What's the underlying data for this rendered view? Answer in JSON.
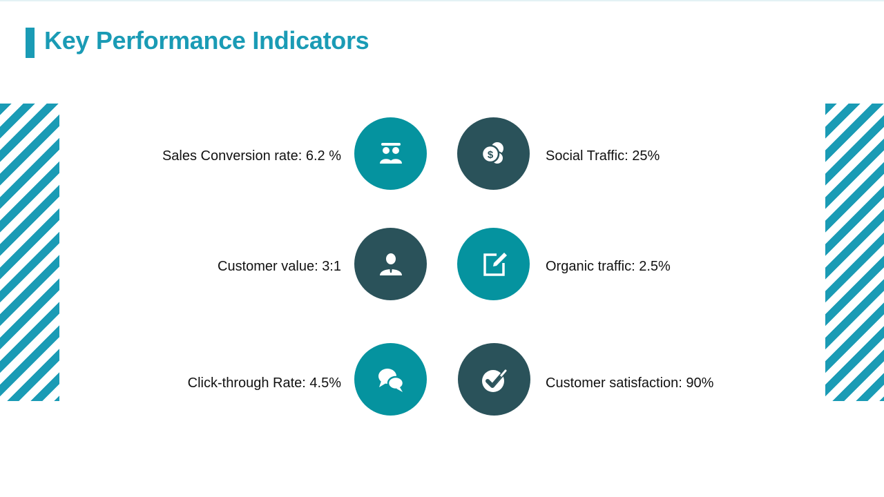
{
  "title": "Key Performance Indicators",
  "colors": {
    "accent": "#1a9bb5",
    "teal": "#05939f",
    "dark": "#2a525a"
  },
  "kpis": {
    "sales_conversion": {
      "label": "Sales Conversion rate: 6.2 %",
      "icon": "group-icon"
    },
    "social_traffic": {
      "label": "Social Traffic: 25%",
      "icon": "coins-icon"
    },
    "customer_value": {
      "label": "Customer value: 3:1",
      "icon": "person-icon"
    },
    "organic_traffic": {
      "label": "Organic traffic: 2.5%",
      "icon": "edit-icon"
    },
    "click_through": {
      "label": "Click-through Rate: 4.5%",
      "icon": "chat-icon"
    },
    "customer_satisfaction": {
      "label": "Customer satisfaction: 90%",
      "icon": "check-icon"
    }
  }
}
